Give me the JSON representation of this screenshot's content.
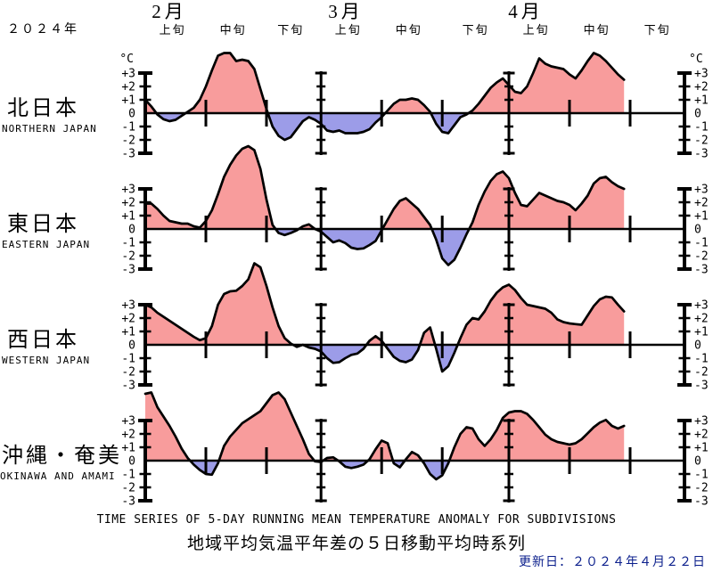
{
  "header": {
    "year_label": "２０２４年"
  },
  "footer": {
    "caption_en": "TIME SERIES OF 5-DAY RUNNING MEAN TEMPERATURE ANOMALY FOR SUBDIVISIONS",
    "title_ja": "地域平均気温平年差の５日移動平均時系列",
    "updated": "更新日：２０２４年４月２２日"
  },
  "chart_data": {
    "type": "area",
    "title": "地域平均気温平年差の５日移動平均時系列",
    "subtitle": "TIME SERIES OF 5-DAY RUNNING MEAN TEMPERATURE ANOMALY FOR SUBDIVISIONS",
    "unit": "°C",
    "ylabel": "°C",
    "ylim": [
      -3,
      3
    ],
    "y_ticks": [
      "+3",
      "+2",
      "+1",
      "0",
      "-1",
      "-2",
      "-3"
    ],
    "grid": false,
    "x_start": "2024-02-01",
    "x_axis_end": "2024-04-30",
    "data_end": "2024-04-20",
    "x_months": [
      {
        "label": "2月",
        "days": 29
      },
      {
        "label": "3月",
        "days": 31
      },
      {
        "label": "4月",
        "days": 30
      }
    ],
    "x_periods": [
      "上旬",
      "中旬",
      "下旬"
    ],
    "colors": {
      "positive_fill": "#f89c9c",
      "negative_fill": "#9c9ce8",
      "line": "#000000"
    },
    "panels": [
      {
        "region_ja": "北日本",
        "region_en": "NORTHERN JAPAN",
        "values": [
          1.0,
          0.5,
          -0.1,
          -0.45,
          -0.6,
          -0.5,
          -0.2,
          0.1,
          0.4,
          1.0,
          2.0,
          3.2,
          4.3,
          4.5,
          4.5,
          3.9,
          4.0,
          3.9,
          3.3,
          1.8,
          0.3,
          -1.0,
          -1.7,
          -2.0,
          -1.8,
          -1.2,
          -0.6,
          -0.3,
          -0.5,
          -0.8,
          -1.3,
          -1.4,
          -1.3,
          -1.5,
          -1.5,
          -1.5,
          -1.4,
          -1.2,
          -0.7,
          -0.3,
          0.2,
          0.7,
          1.0,
          1.0,
          1.1,
          1.0,
          0.6,
          0.1,
          -0.8,
          -1.4,
          -1.5,
          -0.9,
          -0.3,
          -0.1,
          0.2,
          0.7,
          1.3,
          1.9,
          2.3,
          2.6,
          2.1,
          1.6,
          1.5,
          2.0,
          3.0,
          4.1,
          3.7,
          3.5,
          3.4,
          3.3,
          2.9,
          2.6,
          3.2,
          3.9,
          4.5,
          4.3,
          3.9,
          3.4,
          2.9,
          2.5
        ]
      },
      {
        "region_ja": "東日本",
        "region_en": "EASTERN JAPAN",
        "values": [
          1.9,
          1.9,
          1.5,
          1.0,
          0.6,
          0.5,
          0.4,
          0.4,
          0.2,
          0.1,
          0.6,
          1.4,
          2.6,
          3.9,
          4.8,
          5.5,
          6.0,
          6.2,
          5.9,
          4.5,
          2.2,
          0.3,
          -0.3,
          -0.45,
          -0.3,
          -0.1,
          0.2,
          0.35,
          0.0,
          -0.2,
          -0.6,
          -1.0,
          -0.85,
          -1.05,
          -1.4,
          -1.5,
          -1.45,
          -1.2,
          -0.9,
          -0.1,
          0.7,
          1.5,
          2.1,
          2.3,
          1.9,
          1.5,
          0.9,
          0.3,
          -0.8,
          -2.2,
          -2.7,
          -2.3,
          -1.4,
          -0.4,
          0.5,
          1.8,
          2.8,
          3.6,
          4.1,
          4.3,
          3.8,
          2.7,
          1.8,
          1.7,
          2.2,
          2.7,
          2.5,
          2.3,
          2.1,
          2.0,
          1.8,
          1.4,
          1.9,
          2.5,
          3.4,
          3.8,
          3.9,
          3.5,
          3.2,
          3.0
        ]
      },
      {
        "region_ja": "西日本",
        "region_en": "WESTERN JAPAN",
        "values": [
          3.0,
          2.8,
          2.4,
          2.1,
          1.8,
          1.5,
          1.2,
          0.9,
          0.6,
          0.35,
          0.5,
          1.4,
          3.0,
          3.8,
          4.0,
          4.05,
          4.4,
          4.9,
          6.1,
          5.8,
          4.4,
          2.8,
          1.4,
          0.5,
          0.1,
          -0.15,
          0.0,
          -0.2,
          -0.3,
          -0.5,
          -1.0,
          -1.35,
          -1.3,
          -1.0,
          -0.75,
          -0.65,
          -0.3,
          0.3,
          0.65,
          0.3,
          -0.3,
          -0.9,
          -1.2,
          -1.3,
          -1.1,
          -0.4,
          0.9,
          1.3,
          -0.3,
          -2.0,
          -1.6,
          -0.6,
          0.5,
          1.5,
          2.0,
          1.9,
          2.5,
          3.3,
          3.9,
          4.3,
          4.5,
          4.1,
          3.5,
          3.0,
          2.9,
          2.8,
          2.7,
          2.4,
          1.9,
          1.7,
          1.6,
          1.55,
          1.5,
          2.2,
          2.9,
          3.4,
          3.6,
          3.55,
          3.0,
          2.5
        ]
      },
      {
        "region_ja": "沖縄・奄美",
        "region_en": "OKINAWA AND AMAMI",
        "values": [
          5.0,
          5.1,
          4.0,
          3.3,
          2.6,
          1.8,
          0.9,
          0.2,
          -0.3,
          -0.7,
          -1.0,
          -1.05,
          -0.2,
          1.1,
          1.8,
          2.3,
          2.8,
          3.1,
          3.4,
          3.7,
          4.3,
          4.9,
          5.1,
          4.6,
          3.6,
          2.6,
          1.6,
          0.5,
          -0.05,
          -0.1,
          0.2,
          0.25,
          -0.05,
          -0.45,
          -0.55,
          -0.45,
          -0.3,
          0.1,
          0.85,
          1.5,
          1.3,
          -0.2,
          -0.5,
          0.1,
          0.65,
          0.4,
          -0.2,
          -1.0,
          -1.4,
          -1.1,
          -0.2,
          1.0,
          2.0,
          2.5,
          2.4,
          1.6,
          1.1,
          1.6,
          2.3,
          3.2,
          3.6,
          3.7,
          3.7,
          3.5,
          3.05,
          2.5,
          1.95,
          1.6,
          1.4,
          1.3,
          1.2,
          1.3,
          1.6,
          2.05,
          2.5,
          2.85,
          3.05,
          2.6,
          2.4,
          2.6
        ]
      }
    ]
  }
}
